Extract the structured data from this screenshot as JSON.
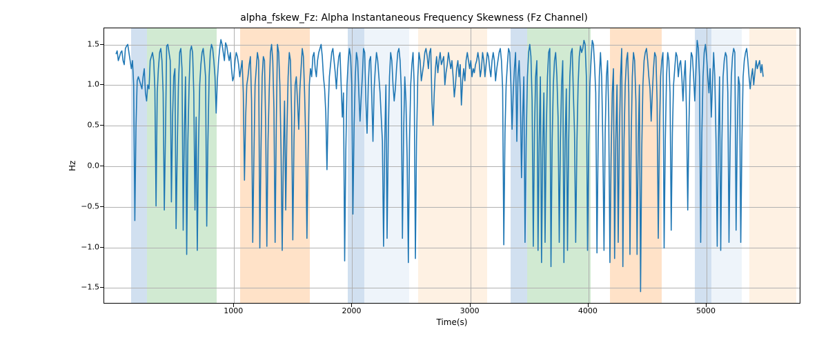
{
  "chart": {
    "type": "line",
    "title": "alpha_fskew_Fz: Alpha Instantaneous Frequency Skewness (Fz Channel)",
    "title_fontsize": 14,
    "xlabel": "Time(s)",
    "ylabel": "Hz",
    "label_fontsize": 12,
    "tick_fontsize": 11,
    "background_color": "#ffffff",
    "axes_border_color": "#000000",
    "grid_color": "#b0b0b0",
    "line_color": "#1f77b4",
    "line_width": 1.6,
    "band_opacity": 0.3,
    "xlim": [
      -100,
      5800
    ],
    "ylim": [
      -1.7,
      1.7
    ],
    "xticks": [
      1000,
      2000,
      3000,
      4000,
      5000
    ],
    "yticks": [
      -1.5,
      -1.0,
      -0.5,
      0.0,
      0.5,
      1.0,
      1.5
    ],
    "ytick_labels": [
      "−1.5",
      "−1.0",
      "−0.5",
      "0.0",
      "0.5",
      "1.0",
      "1.5"
    ],
    "bands": [
      {
        "start": 130,
        "end": 260,
        "color": "#6699cc"
      },
      {
        "start": 260,
        "end": 850,
        "color": "#66bb6a"
      },
      {
        "start": 1050,
        "end": 1640,
        "color": "#ff9e4a"
      },
      {
        "start": 1960,
        "end": 2100,
        "color": "#6699cc"
      },
      {
        "start": 2100,
        "end": 2480,
        "color": "#c6dbef"
      },
      {
        "start": 2560,
        "end": 3140,
        "color": "#fdd0a2"
      },
      {
        "start": 3340,
        "end": 3480,
        "color": "#6699cc"
      },
      {
        "start": 3480,
        "end": 4020,
        "color": "#66bb6a"
      },
      {
        "start": 4180,
        "end": 4620,
        "color": "#ff9e4a"
      },
      {
        "start": 4900,
        "end": 5040,
        "color": "#6699cc"
      },
      {
        "start": 5040,
        "end": 5300,
        "color": "#c6dbef"
      },
      {
        "start": 5360,
        "end": 5760,
        "color": "#fdd0a2"
      }
    ],
    "series": {
      "x_step": 10,
      "x_start": 0,
      "y": [
        1.38,
        1.42,
        1.3,
        1.35,
        1.4,
        1.42,
        1.3,
        1.25,
        1.45,
        1.48,
        1.5,
        1.4,
        1.3,
        1.2,
        1.3,
        1.0,
        -0.68,
        0.5,
        1.05,
        1.1,
        1.05,
        1.0,
        0.95,
        1.1,
        1.2,
        0.9,
        0.8,
        1.0,
        0.95,
        1.3,
        1.35,
        1.4,
        1.3,
        0.95,
        -0.5,
        0.9,
        1.2,
        1.4,
        1.45,
        1.3,
        0.9,
        -0.55,
        0.4,
        1.48,
        1.5,
        1.4,
        1.3,
        -0.45,
        0.6,
        1.1,
        1.2,
        -0.78,
        0.2,
        1.0,
        1.4,
        1.45,
        1.2,
        -0.8,
        0.4,
        1.1,
        -1.1,
        0.3,
        1.0,
        1.42,
        1.48,
        1.4,
        0.9,
        -0.55,
        0.6,
        -1.05,
        0.2,
        1.0,
        1.25,
        1.4,
        1.45,
        1.3,
        1.1,
        -0.75,
        0.3,
        1.1,
        1.4,
        1.5,
        1.45,
        1.3,
        1.1,
        0.65,
        1.05,
        1.3,
        1.45,
        1.56,
        1.5,
        1.4,
        1.3,
        1.52,
        1.48,
        1.38,
        1.3,
        1.4,
        1.2,
        1.05,
        1.1,
        1.3,
        1.4,
        1.35,
        1.25,
        1.1,
        1.2,
        1.3,
        0.9,
        -0.18,
        0.6,
        1.0,
        1.1,
        1.25,
        1.35,
        0.8,
        -0.95,
        0.1,
        1.0,
        1.2,
        1.4,
        1.3,
        -1.02,
        0.2,
        1.1,
        1.35,
        1.3,
        0.5,
        -1.0,
        0.3,
        0.95,
        1.4,
        1.5,
        1.3,
        0.7,
        -0.95,
        0.5,
        1.5,
        1.4,
        1.0,
        0.2,
        -1.05,
        0.1,
        0.8,
        -0.55,
        0.4,
        1.1,
        1.4,
        1.3,
        0.6,
        -0.92,
        0.3,
        1.0,
        1.1,
        0.8,
        0.45,
        0.95,
        1.2,
        1.45,
        1.35,
        0.9,
        0.3,
        -0.9,
        0.2,
        1.0,
        1.2,
        1.1,
        1.35,
        1.4,
        1.2,
        1.1,
        1.3,
        1.4,
        1.45,
        1.5,
        1.35,
        1.1,
        0.95,
        0.65,
        -0.05,
        0.7,
        1.1,
        1.25,
        1.4,
        1.45,
        1.3,
        1.15,
        0.95,
        1.2,
        1.35,
        1.4,
        1.0,
        0.6,
        0.9,
        -1.18,
        0.2,
        1.0,
        1.3,
        1.45,
        1.35,
        1.0,
        -0.6,
        0.5,
        1.1,
        1.4,
        1.3,
        0.9,
        0.55,
        0.85,
        1.1,
        1.45,
        1.4,
        0.8,
        0.4,
        1.0,
        1.3,
        1.35,
        0.85,
        0.3,
        0.95,
        1.2,
        1.4,
        1.3,
        1.1,
        0.9,
        0.6,
        0.3,
        -1.0,
        0.3,
        1.0,
        -0.9,
        0.4,
        1.1,
        1.4,
        1.3,
        1.0,
        0.8,
        0.95,
        1.2,
        1.4,
        1.45,
        1.3,
        0.95,
        -0.9,
        0.4,
        1.1,
        0.8,
        0.1,
        -1.2,
        0.3,
        1.0,
        1.25,
        1.4,
        1.0,
        -1.15,
        0.3,
        1.1,
        1.4,
        1.3,
        1.05,
        1.15,
        1.25,
        1.4,
        1.45,
        1.35,
        1.2,
        1.4,
        1.45,
        0.8,
        0.5,
        0.9,
        1.2,
        1.35,
        1.15,
        1.3,
        1.4,
        1.25,
        1.3,
        1.35,
        1.0,
        1.15,
        1.25,
        1.4,
        1.3,
        1.2,
        1.3,
        1.1,
        0.85,
        1.0,
        1.2,
        1.3,
        1.1,
        1.25,
        0.75,
        1.05,
        1.2,
        1.05,
        1.3,
        1.4,
        1.3,
        1.2,
        1.3,
        1.1,
        1.2,
        1.15,
        1.25,
        1.3,
        1.4,
        1.3,
        1.1,
        1.2,
        1.4,
        1.3,
        1.1,
        1.25,
        1.4,
        1.35,
        1.2,
        1.1,
        1.3,
        1.4,
        1.3,
        1.05,
        1.2,
        1.3,
        1.4,
        1.45,
        1.3,
        0.95,
        -0.98,
        0.4,
        1.0,
        1.25,
        1.45,
        1.4,
        1.0,
        0.45,
        0.9,
        1.2,
        1.4,
        0.3,
        1.1,
        1.3,
        0.9,
        -0.15,
        0.6,
        1.1,
        -0.95,
        0.3,
        1.1,
        1.4,
        1.5,
        1.35,
        0.8,
        -1.0,
        0.4,
        1.1,
        1.3,
        -1.05,
        0.3,
        1.1,
        -1.2,
        0.2,
        0.9,
        -0.95,
        0.4,
        1.1,
        1.4,
        1.45,
        -1.25,
        0.3,
        1.0,
        1.3,
        1.4,
        1.1,
        0.6,
        -0.95,
        0.3,
        1.0,
        1.3,
        -1.2,
        0.3,
        0.95,
        -1.05,
        0.3,
        1.1,
        1.4,
        1.45,
        0.9,
        0.4,
        -0.95,
        0.3,
        1.0,
        1.35,
        1.48,
        1.4,
        1.45,
        1.55,
        1.5,
        1.1,
        -1.05,
        0.25,
        1.0,
        1.3,
        1.55,
        1.5,
        1.25,
        0.9,
        -1.08,
        0.3,
        1.1,
        1.4,
        1.1,
        0.3,
        -1.05,
        0.4,
        1.1,
        1.3,
        0.6,
        -1.2,
        0.1,
        0.9,
        1.2,
        -1.15,
        0.3,
        1.0,
        -0.95,
        0.35,
        1.1,
        1.45,
        -1.25,
        0.3,
        1.0,
        1.3,
        1.4,
        0.9,
        -1.1,
        0.3,
        1.1,
        1.4,
        1.3,
        0.8,
        -1.1,
        0.3,
        1.0,
        -1.56,
        0.2,
        1.0,
        1.3,
        1.4,
        1.45,
        1.3,
        1.1,
        0.95,
        0.55,
        0.9,
        1.2,
        1.4,
        1.35,
        0.8,
        -0.9,
        0.4,
        1.1,
        1.3,
        1.4,
        -1.02,
        0.3,
        1.1,
        1.4,
        1.3,
        0.9,
        -0.8,
        0.4,
        1.0,
        1.2,
        1.4,
        1.35,
        1.1,
        1.25,
        1.3,
        1.1,
        0.8,
        1.1,
        1.3,
        0.6,
        -0.55,
        0.5,
        1.1,
        1.4,
        1.35,
        1.1,
        0.8,
        1.2,
        1.55,
        1.45,
        1.1,
        -0.95,
        0.4,
        1.1,
        1.4,
        1.5,
        1.35,
        1.1,
        0.9,
        1.2,
        0.6,
        1.0,
        1.4,
        1.1,
        0.3,
        -1.0,
        0.3,
        1.1,
        -1.05,
        0.3,
        1.1,
        1.3,
        1.4,
        1.35,
        0.9,
        -0.95,
        0.3,
        1.1,
        1.35,
        1.45,
        1.4,
        -0.8,
        0.4,
        1.1,
        1.0,
        -0.95,
        0.3,
        1.1,
        1.3,
        1.4,
        1.45,
        1.3,
        1.1,
        0.95,
        1.1,
        1.2,
        1.0,
        1.15,
        1.3,
        1.2,
        1.25,
        1.3,
        1.15,
        1.25,
        1.1
      ]
    }
  }
}
